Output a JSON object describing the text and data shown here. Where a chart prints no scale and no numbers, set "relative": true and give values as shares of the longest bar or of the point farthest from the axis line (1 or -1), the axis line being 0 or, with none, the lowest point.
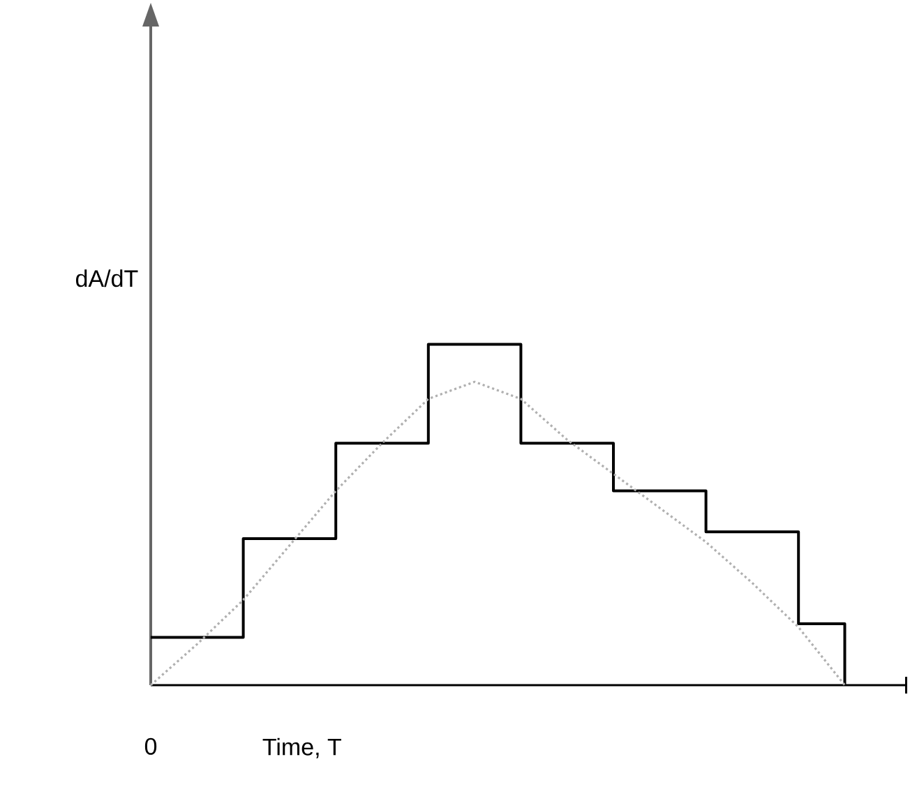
{
  "chart_data": {
    "type": "step",
    "relative": true,
    "xlabel": "Time, T",
    "ylabel": "dA/dT",
    "annotations": [
      "0"
    ],
    "categories": [
      null,
      null,
      null,
      null,
      null,
      null,
      null,
      null,
      null,
      null,
      null,
      null,
      null,
      null,
      null,
      null
    ],
    "series": [
      {
        "color": "#000000",
        "line_style": "solid",
        "values": [
          0.14,
          0.14,
          0.43,
          0.43,
          0.71,
          0.71,
          1,
          1,
          0.71,
          0.71,
          0.57,
          0.57,
          0.45,
          0.45,
          0.18,
          0
        ]
      },
      {
        "type": "line",
        "color": "#b0b0b0",
        "line_style": "dotted",
        "values": [
          0,
          0.12,
          0.25,
          0.41,
          0.57,
          0.71,
          0.84,
          0.89,
          0.84,
          0.72,
          0.62,
          0.52,
          0.42,
          0.3,
          0.17,
          0
        ]
      }
    ]
  }
}
